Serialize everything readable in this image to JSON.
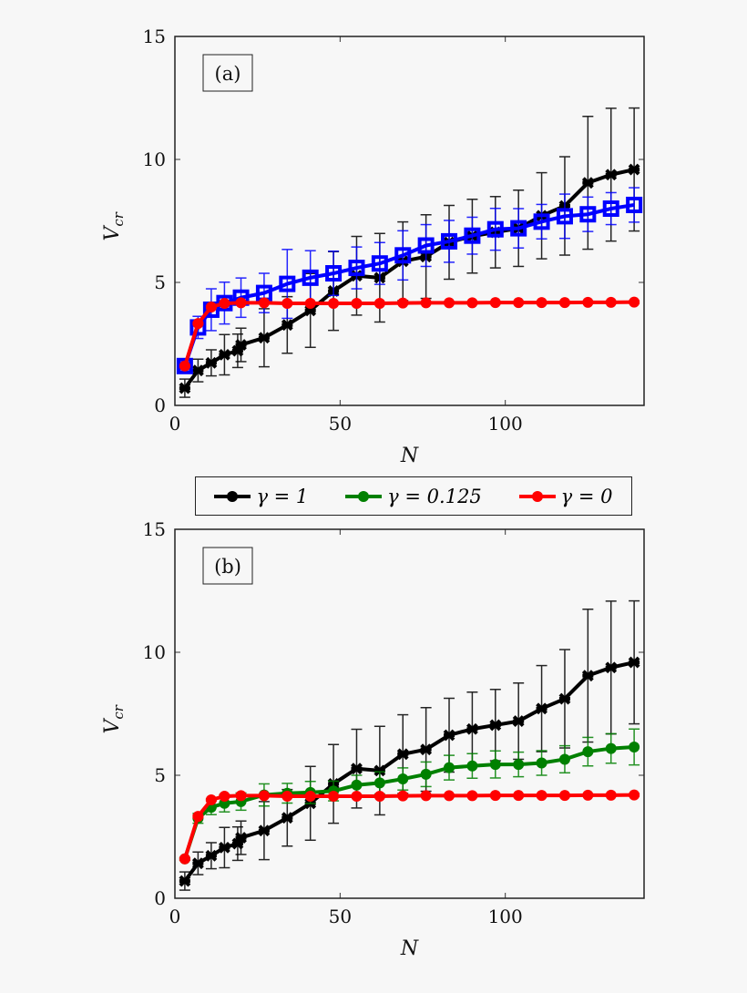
{
  "chart_data": [
    {
      "type": "line",
      "panel_label": "(a)",
      "xlabel": "N",
      "ylabel": "V",
      "ylabel_subscript": "cr",
      "xlim": [
        0,
        142
      ],
      "ylim": [
        0,
        15
      ],
      "xticks": [
        0,
        50,
        100
      ],
      "yticks": [
        0,
        5,
        10,
        15
      ],
      "grid": false,
      "error_bars": true,
      "series": [
        {
          "color": "#000000",
          "marker": "cross",
          "x": [
            3,
            7,
            11,
            15,
            19,
            20,
            27,
            34,
            41,
            48,
            55,
            62,
            69,
            76,
            83,
            90,
            97,
            104,
            111,
            118,
            125,
            132,
            139
          ],
          "y": [
            0.7,
            1.42,
            1.73,
            2.06,
            2.22,
            2.46,
            2.75,
            3.27,
            3.86,
            4.65,
            5.27,
            5.19,
            5.86,
            6.05,
            6.63,
            6.88,
            7.04,
            7.2,
            7.71,
            8.11,
            9.05,
            9.38,
            9.59
          ],
          "err": [
            0.37,
            0.46,
            0.53,
            0.82,
            0.68,
            0.68,
            1.18,
            1.15,
            1.5,
            1.6,
            1.6,
            1.8,
            1.6,
            1.7,
            1.5,
            1.5,
            1.45,
            1.55,
            1.75,
            2.0,
            2.7,
            2.7,
            2.5
          ]
        },
        {
          "color": "#0000ff",
          "marker": "square",
          "x": [
            3,
            7,
            11,
            15,
            20,
            27,
            34,
            41,
            48,
            55,
            62,
            69,
            76,
            83,
            90,
            97,
            104,
            111,
            118,
            125,
            132,
            139
          ],
          "y": [
            1.6,
            3.17,
            3.89,
            4.16,
            4.38,
            4.57,
            4.94,
            5.19,
            5.37,
            5.59,
            5.77,
            6.1,
            6.5,
            6.67,
            6.9,
            7.16,
            7.2,
            7.47,
            7.69,
            7.77,
            8.0,
            8.15
          ],
          "err": [
            0.15,
            0.45,
            0.85,
            0.85,
            0.8,
            0.8,
            1.4,
            1.1,
            0.9,
            0.85,
            0.85,
            1.0,
            0.85,
            0.85,
            0.75,
            0.85,
            0.8,
            0.7,
            0.9,
            0.7,
            0.65,
            0.7
          ]
        },
        {
          "color": "#ff0000",
          "marker": "circle",
          "x": [
            3,
            7,
            11,
            15,
            20,
            27,
            34,
            41,
            48,
            55,
            62,
            69,
            76,
            83,
            90,
            97,
            104,
            111,
            118,
            125,
            132,
            139
          ],
          "y": [
            1.6,
            3.33,
            4.0,
            4.15,
            4.17,
            4.17,
            4.15,
            4.15,
            4.15,
            4.15,
            4.15,
            4.16,
            4.17,
            4.17,
            4.17,
            4.18,
            4.18,
            4.18,
            4.18,
            4.19,
            4.19,
            4.2
          ],
          "err": [
            0.05,
            0.05,
            0.05,
            0.05,
            0.05,
            0.05,
            0.05,
            0.05,
            0.05,
            0.05,
            0.05,
            0.05,
            0.05,
            0.05,
            0.05,
            0.05,
            0.05,
            0.05,
            0.05,
            0.05,
            0.05,
            0.05
          ]
        }
      ]
    },
    {
      "type": "line",
      "panel_label": "(b)",
      "xlabel": "N",
      "ylabel": "V",
      "ylabel_subscript": "cr",
      "xlim": [
        0,
        142
      ],
      "ylim": [
        0,
        15
      ],
      "xticks": [
        0,
        50,
        100
      ],
      "yticks": [
        0,
        5,
        10,
        15
      ],
      "grid": false,
      "error_bars": true,
      "series": [
        {
          "name": "γ = 1",
          "color": "#000000",
          "marker": "cross",
          "x": [
            3,
            7,
            11,
            15,
            19,
            20,
            27,
            34,
            41,
            48,
            55,
            62,
            69,
            76,
            83,
            90,
            97,
            104,
            111,
            118,
            125,
            132,
            139
          ],
          "y": [
            0.7,
            1.42,
            1.73,
            2.06,
            2.22,
            2.46,
            2.75,
            3.27,
            3.86,
            4.65,
            5.27,
            5.19,
            5.86,
            6.05,
            6.63,
            6.88,
            7.04,
            7.2,
            7.71,
            8.11,
            9.05,
            9.38,
            9.59
          ],
          "err": [
            0.37,
            0.46,
            0.53,
            0.82,
            0.68,
            0.68,
            1.18,
            1.15,
            1.5,
            1.6,
            1.6,
            1.8,
            1.6,
            1.7,
            1.5,
            1.5,
            1.45,
            1.55,
            1.75,
            2.0,
            2.7,
            2.7,
            2.5
          ]
        },
        {
          "name": "γ = 0.125",
          "color": "#008000",
          "marker": "circle",
          "x": [
            3,
            7,
            11,
            15,
            20,
            27,
            34,
            41,
            48,
            55,
            62,
            69,
            76,
            83,
            90,
            97,
            104,
            111,
            118,
            125,
            132,
            139
          ],
          "y": [
            1.6,
            3.25,
            3.7,
            3.86,
            3.93,
            4.2,
            4.27,
            4.3,
            4.36,
            4.6,
            4.69,
            4.85,
            5.04,
            5.31,
            5.38,
            5.44,
            5.44,
            5.5,
            5.65,
            5.96,
            6.09,
            6.15
          ],
          "err": [
            0.05,
            0.2,
            0.3,
            0.35,
            0.35,
            0.45,
            0.4,
            0.45,
            0.4,
            0.4,
            0.45,
            0.45,
            0.5,
            0.5,
            0.5,
            0.55,
            0.5,
            0.5,
            0.55,
            0.58,
            0.6,
            0.73
          ]
        },
        {
          "name": "γ = 0",
          "color": "#ff0000",
          "marker": "circle",
          "x": [
            3,
            7,
            11,
            15,
            20,
            27,
            34,
            41,
            48,
            55,
            62,
            69,
            76,
            83,
            90,
            97,
            104,
            111,
            118,
            125,
            132,
            139
          ],
          "y": [
            1.6,
            3.33,
            4.0,
            4.15,
            4.17,
            4.17,
            4.15,
            4.15,
            4.15,
            4.15,
            4.15,
            4.16,
            4.17,
            4.17,
            4.17,
            4.18,
            4.18,
            4.18,
            4.18,
            4.19,
            4.19,
            4.2
          ],
          "err": [
            0.05,
            0.05,
            0.05,
            0.05,
            0.05,
            0.05,
            0.05,
            0.05,
            0.05,
            0.05,
            0.05,
            0.05,
            0.05,
            0.05,
            0.05,
            0.05,
            0.05,
            0.05,
            0.05,
            0.05,
            0.05,
            0.05
          ]
        }
      ]
    }
  ],
  "legend": {
    "position": "between-panels",
    "items": [
      {
        "label": "γ = 1",
        "color": "#000000"
      },
      {
        "label": "γ = 0.125",
        "color": "#008000"
      },
      {
        "label": "γ = 0",
        "color": "#ff0000"
      }
    ]
  }
}
